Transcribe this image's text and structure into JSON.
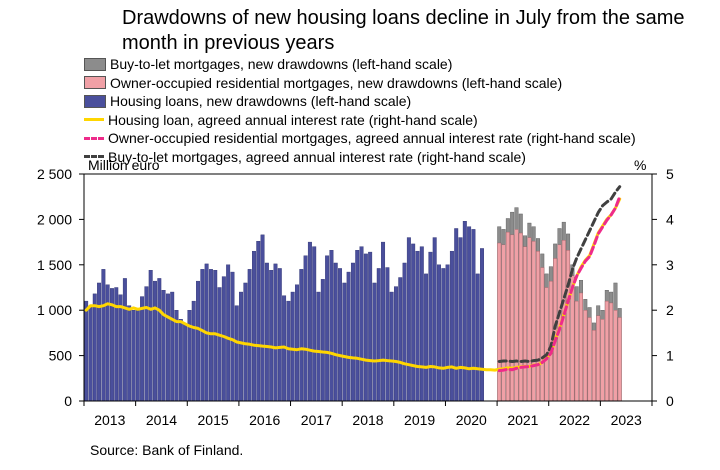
{
  "title": "Drawdowns of new housing loans decline in July from the same month in previous years",
  "left_unit": "Million euro",
  "right_unit": "%",
  "source": "Source: Bank of Finland.",
  "colors": {
    "buy_to_let": "#8c8c8c",
    "owner_occupied": "#f0a0a6",
    "housing_loans": "#4a4f9c",
    "rate_housing": "#ffd600",
    "rate_owner": "#ee2b8a",
    "rate_btl": "#404040"
  },
  "legend": [
    {
      "label": "Buy-to-let mortgages, new drawdowns (left-hand scale)",
      "kind": "bar",
      "color": "#8c8c8c"
    },
    {
      "label": "Owner-occupied residential mortgages, new drawdowns (left-hand scale)",
      "kind": "bar",
      "color": "#f0a0a6"
    },
    {
      "label": "Housing loans, new drawdowns (left-hand scale)",
      "kind": "bar",
      "color": "#4a4f9c"
    },
    {
      "label": "Housing loan, agreed annual interest rate (right-hand scale)",
      "kind": "line",
      "color": "#ffd600"
    },
    {
      "label": "Owner-occupied residential mortgages, agreed annual interest rate (right-hand scale)",
      "kind": "dash",
      "color": "#ee2b8a"
    },
    {
      "label": "Buy-to-let mortgages, agreed annual interest rate (right-hand scale)",
      "kind": "dash",
      "color": "#404040"
    }
  ],
  "chart_data": {
    "type": "bar",
    "x_start": "2013-01",
    "y_left_ticks": [
      "0",
      "500",
      "1 000",
      "1 500",
      "2 000",
      "2 500"
    ],
    "ylim_left": [
      0,
      2500
    ],
    "y_right_ticks": [
      "0",
      "1",
      "2",
      "3",
      "4",
      "5"
    ],
    "ylim_right": [
      0,
      5
    ],
    "x_tick_labels": [
      "2013",
      "2014",
      "2015",
      "2016",
      "2017",
      "2018",
      "2019",
      "2020",
      "2021",
      "2022",
      "2023"
    ],
    "grid": false,
    "legend_position": "top",
    "housing_loans": [
      1100,
      1050,
      1180,
      1300,
      1450,
      1280,
      1240,
      1250,
      1170,
      1350,
      1050,
      1000,
      1000,
      1150,
      1260,
      1440,
      1320,
      1350,
      1220,
      1180,
      1200,
      1000,
      900,
      850,
      1000,
      1100,
      1320,
      1450,
      1510,
      1450,
      1440,
      1250,
      1370,
      1500,
      1420,
      1050,
      1200,
      1300,
      1450,
      1650,
      1760,
      1830,
      1520,
      1440,
      1510,
      1460,
      1160,
      1100,
      1200,
      1280,
      1450,
      1600,
      1750,
      1700,
      1200,
      1340,
      1600,
      1660,
      1520,
      1460,
      1300,
      1420,
      1520,
      1660,
      1700,
      1620,
      1640,
      1300,
      1460,
      1750,
      1470,
      1200,
      1260,
      1360,
      1520,
      1800,
      1730,
      1650,
      1700,
      1400,
      1640,
      1800,
      1500,
      1460,
      1500,
      1650,
      1900,
      1800,
      1980,
      1920,
      1890,
      1400,
      1680
    ],
    "owner_occupied": [
      1740,
      1720,
      1860,
      1830,
      1890,
      1850,
      1700,
      1800,
      1760,
      1650,
      1470,
      1250,
      1320,
      1570,
      1720,
      1770,
      1660,
      1380,
      1100,
      1190,
      1000,
      920,
      780,
      940,
      900,
      1100,
      1080,
      1000,
      920
    ],
    "buy_to_let": [
      1920,
      1890,
      2010,
      2080,
      2130,
      2060,
      1820,
      1960,
      1920,
      1790,
      1620,
      1400,
      1480,
      1730,
      1900,
      1970,
      1840,
      1500,
      1260,
      1330,
      1120,
      1030,
      860,
      1050,
      1000,
      1220,
      1200,
      1300,
      1020
    ],
    "rate_housing": [
      2.0,
      2.1,
      2.1,
      2.08,
      2.1,
      2.14,
      2.12,
      2.08,
      2.08,
      2.05,
      2.02,
      2.05,
      2.02,
      2.04,
      2.06,
      2.02,
      2.05,
      2.0,
      1.9,
      1.85,
      1.8,
      1.75,
      1.75,
      1.7,
      1.65,
      1.62,
      1.6,
      1.55,
      1.5,
      1.48,
      1.48,
      1.45,
      1.42,
      1.38,
      1.35,
      1.3,
      1.28,
      1.26,
      1.25,
      1.23,
      1.22,
      1.21,
      1.2,
      1.19,
      1.17,
      1.18,
      1.19,
      1.15,
      1.14,
      1.13,
      1.15,
      1.14,
      1.12,
      1.1,
      1.09,
      1.08,
      1.07,
      1.05,
      1.02,
      1.0,
      0.98,
      0.96,
      0.95,
      0.94,
      0.92,
      0.9,
      0.89,
      0.88,
      0.89,
      0.9,
      0.89,
      0.88,
      0.87,
      0.85,
      0.82,
      0.8,
      0.78,
      0.76,
      0.75,
      0.74,
      0.76,
      0.75,
      0.73,
      0.72,
      0.74,
      0.75,
      0.72,
      0.74,
      0.73,
      0.71,
      0.72,
      0.71,
      0.7,
      0.69,
      0.69,
      0.68,
      0.7,
      0.71,
      0.73,
      0.72,
      0.74,
      0.75,
      0.76,
      0.76,
      0.79,
      0.8,
      0.85,
      0.95,
      1.05,
      1.35,
      1.6,
      1.9,
      2.2,
      2.5,
      2.75,
      2.95,
      3.1,
      3.2,
      3.45,
      3.7,
      3.85,
      4.0,
      4.1,
      4.25,
      4.45
    ],
    "rate_owner": [
      0.67,
      0.68,
      0.7,
      0.69,
      0.72,
      0.74,
      0.75,
      0.76,
      0.78,
      0.8,
      0.85,
      0.93,
      1.05,
      1.33,
      1.58,
      1.88,
      2.2,
      2.5,
      2.75,
      2.92,
      3.08,
      3.18,
      3.42,
      3.68,
      3.83,
      3.98,
      4.1,
      4.25,
      4.5
    ],
    "rate_btl": [
      0.87,
      0.88,
      0.88,
      0.87,
      0.88,
      0.87,
      0.88,
      0.87,
      0.89,
      0.9,
      0.95,
      1.02,
      1.2,
      1.65,
      1.95,
      2.25,
      2.55,
      2.9,
      3.15,
      3.35,
      3.55,
      3.75,
      3.95,
      4.15,
      4.3,
      4.38,
      4.45,
      4.6,
      4.72
    ],
    "split_index": 96,
    "series": [
      {
        "name": "Buy-to-let mortgages, new drawdowns (left-hand scale)",
        "axis": "left"
      },
      {
        "name": "Owner-occupied residential mortgages, new drawdowns (left-hand scale)",
        "axis": "left"
      },
      {
        "name": "Housing loans, new drawdowns (left-hand scale)",
        "axis": "left"
      },
      {
        "name": "Housing loan, agreed annual interest rate (right-hand scale)",
        "axis": "right"
      },
      {
        "name": "Owner-occupied residential mortgages, agreed annual interest rate (right-hand scale)",
        "axis": "right"
      },
      {
        "name": "Buy-to-let mortgages, agreed annual interest rate (right-hand scale)",
        "axis": "right"
      }
    ]
  }
}
